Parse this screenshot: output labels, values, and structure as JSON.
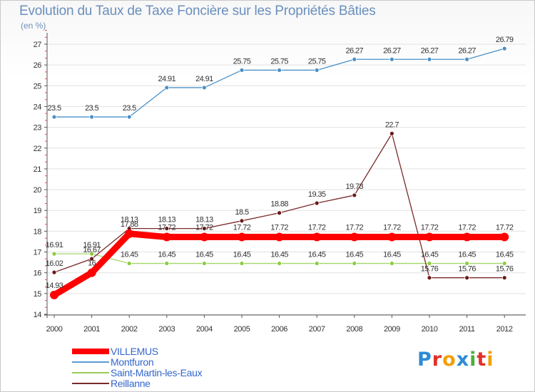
{
  "chart_data": {
    "type": "line",
    "title": "Evolution du Taux de Taxe Foncière sur les Propriétés Bâties",
    "ylabel": "(en %)",
    "xlabel": "",
    "x": [
      "2000",
      "2001",
      "2002",
      "2003",
      "2004",
      "2005",
      "2006",
      "2007",
      "2008",
      "2009",
      "2010",
      "2011",
      "2012"
    ],
    "ylim": [
      14,
      27
    ],
    "yticks": [
      "14",
      "15",
      "16",
      "17",
      "18",
      "19",
      "20",
      "21",
      "22",
      "23",
      "24",
      "25",
      "26",
      "27"
    ],
    "grid": true,
    "legend_position": "bottom-left",
    "series": [
      {
        "name": "VILLEMUS",
        "color": "#ff0000",
        "values": [
          14.93,
          16,
          17.88,
          17.72,
          17.72,
          17.72,
          17.72,
          17.72,
          17.72,
          17.72,
          17.72,
          17.72,
          17.72
        ],
        "labels": [
          "14.93",
          "16",
          "17.88",
          "17.72",
          "17.72",
          "17.72",
          "17.72",
          "17.72",
          "17.72",
          "17.72",
          "17.72",
          "17.72",
          "17.72"
        ]
      },
      {
        "name": "Montfuron",
        "color": "#5b9bd5",
        "values": [
          23.5,
          23.5,
          23.5,
          24.91,
          24.91,
          25.75,
          25.75,
          25.75,
          26.27,
          26.27,
          26.27,
          26.27,
          26.79
        ],
        "labels": [
          "23.5",
          "23.5",
          "23.5",
          "24.91",
          "24.91",
          "25.75",
          "25.75",
          "25.75",
          "26.27",
          "26.27",
          "26.27",
          "26.27",
          "26.79"
        ]
      },
      {
        "name": "Saint-Martin-les-Eaux",
        "color": "#99cc55",
        "values": [
          16.91,
          16.91,
          16.45,
          16.45,
          16.45,
          16.45,
          16.45,
          16.45,
          16.45,
          16.45,
          16.45,
          16.45,
          16.45
        ],
        "labels": [
          "16.91",
          "16.91",
          "16.45",
          "16.45",
          "16.45",
          "16.45",
          "16.45",
          "16.45",
          "16.45",
          "16.45",
          "16.45",
          "16.45",
          "16.45"
        ]
      },
      {
        "name": "Reillanne",
        "color": "#7a2a2a",
        "values": [
          16.02,
          16.67,
          18.13,
          18.13,
          18.13,
          18.5,
          18.88,
          19.35,
          19.73,
          22.7,
          15.76,
          15.76,
          15.76
        ],
        "labels": [
          "16.02",
          "16.67",
          "18.13",
          "18.13",
          "18.13",
          "18.5",
          "18.88",
          "19.35",
          "19.73",
          "22.7",
          "15.76",
          "15.76",
          "15.76"
        ]
      }
    ]
  },
  "brand": {
    "text": "Proxiti",
    "letters": [
      "P",
      "r",
      "o",
      "x",
      "i",
      "t",
      "i"
    ],
    "colors": [
      "#2e8bd6",
      "#e0312b",
      "#f2a007",
      "#2e8bd6",
      "#4caf3a",
      "#e0312b",
      "#f2a007"
    ]
  }
}
